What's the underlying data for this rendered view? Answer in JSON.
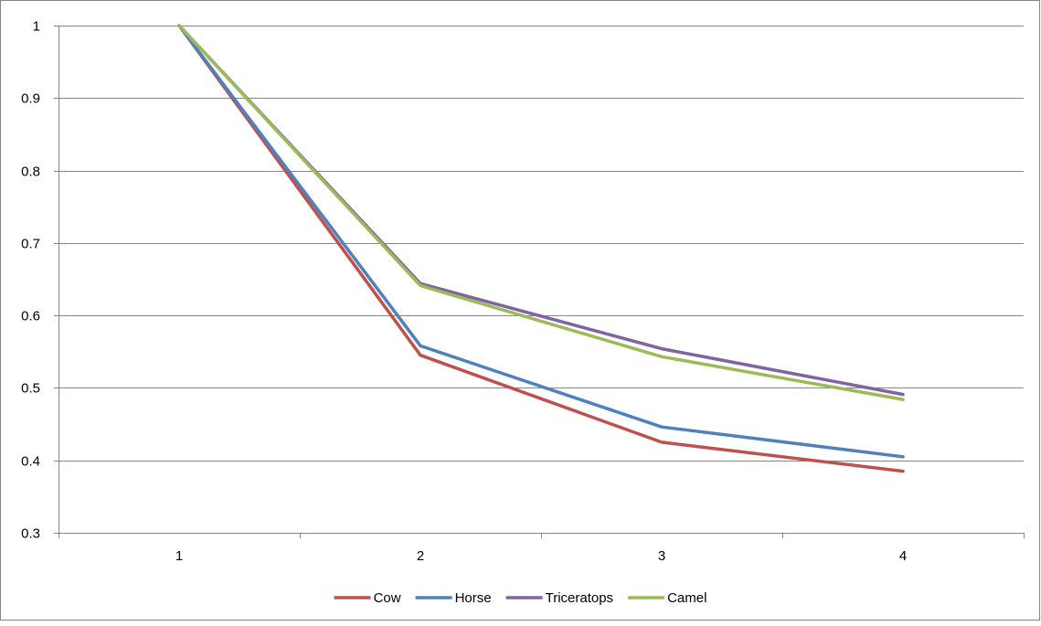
{
  "chart_data": {
    "type": "line",
    "title": "",
    "xlabel": "",
    "ylabel": "",
    "categories": [
      "1",
      "2",
      "3",
      "4"
    ],
    "ylim": [
      0.3,
      1
    ],
    "y_ticks": [
      0.3,
      0.4,
      0.5,
      0.6,
      0.7,
      0.8,
      0.9,
      1
    ],
    "y_tick_labels": [
      "0.3",
      "0.4",
      "0.5",
      "0.6",
      "0.7",
      "0.8",
      "0.9",
      "1"
    ],
    "grid": "horizontal",
    "legend_position": "bottom",
    "series": [
      {
        "name": "Cow",
        "color": "#C0504D",
        "values": [
          1.0,
          0.545,
          0.425,
          0.385
        ]
      },
      {
        "name": "Horse",
        "color": "#4F81BD",
        "values": [
          1.0,
          0.558,
          0.446,
          0.405
        ]
      },
      {
        "name": "Triceratops",
        "color": "#8064A2",
        "values": [
          1.0,
          0.644,
          0.554,
          0.491
        ]
      },
      {
        "name": "Camel",
        "color": "#9BBB59",
        "values": [
          1.0,
          0.641,
          0.543,
          0.484
        ]
      }
    ]
  }
}
